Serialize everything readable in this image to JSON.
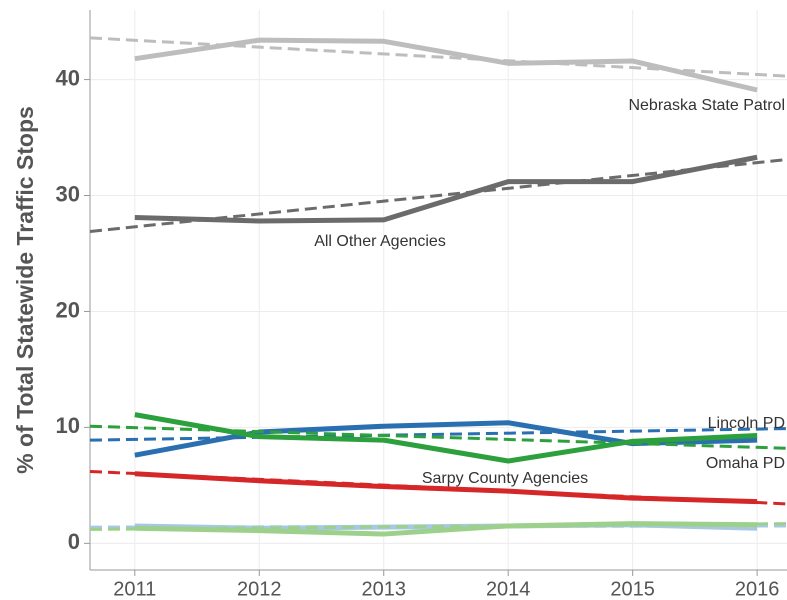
{
  "chart_data": {
    "type": "line",
    "y_label": "% of Total Statewide Traffic Stops",
    "x": [
      2011,
      2012,
      2013,
      2014,
      2015,
      2016
    ],
    "xlim": [
      2010.64,
      2016.24
    ],
    "xticks": [
      2011,
      2012,
      2013,
      2014,
      2015,
      2016
    ],
    "ylim": [
      -2.3,
      46
    ],
    "yticks": [
      0,
      10,
      20,
      30,
      40
    ],
    "grid": true,
    "series": [
      {
        "name": "Nebraska State Patrol",
        "color": "#bdbdbd",
        "values": [
          41.8,
          43.4,
          43.3,
          41.4,
          41.6,
          39.1
        ],
        "trend": [
          43.6,
          40.3
        ]
      },
      {
        "name": "All Other Agencies",
        "color": "#6b6b6b",
        "values": [
          28.1,
          27.8,
          27.9,
          31.2,
          31.2,
          33.3
        ],
        "trend": [
          26.9,
          33.1
        ]
      },
      {
        "name": "Lincoln PD",
        "color": "#2a6fb0",
        "values": [
          7.6,
          9.6,
          10.1,
          10.4,
          8.6,
          8.9
        ],
        "trend": [
          8.9,
          9.9
        ]
      },
      {
        "name": "Omaha PD",
        "color": "#2ca03c",
        "values": [
          11.1,
          9.2,
          8.9,
          7.1,
          8.8,
          9.3
        ],
        "trend": [
          10.1,
          8.2
        ]
      },
      {
        "name": "Sarpy County Agencies",
        "color": "#d62728",
        "values": [
          6.0,
          5.4,
          4.9,
          4.5,
          3.9,
          3.6
        ],
        "trend": [
          6.2,
          3.4
        ]
      },
      {
        "color": "#a6c8e4",
        "values": [
          1.5,
          1.3,
          1.4,
          1.5,
          1.6,
          1.3
        ],
        "trend": [
          1.4,
          1.5
        ]
      },
      {
        "color": "#9dd08a",
        "values": [
          1.3,
          1.1,
          0.8,
          1.5,
          1.7,
          1.6
        ],
        "trend": [
          1.2,
          1.7
        ]
      }
    ]
  }
}
